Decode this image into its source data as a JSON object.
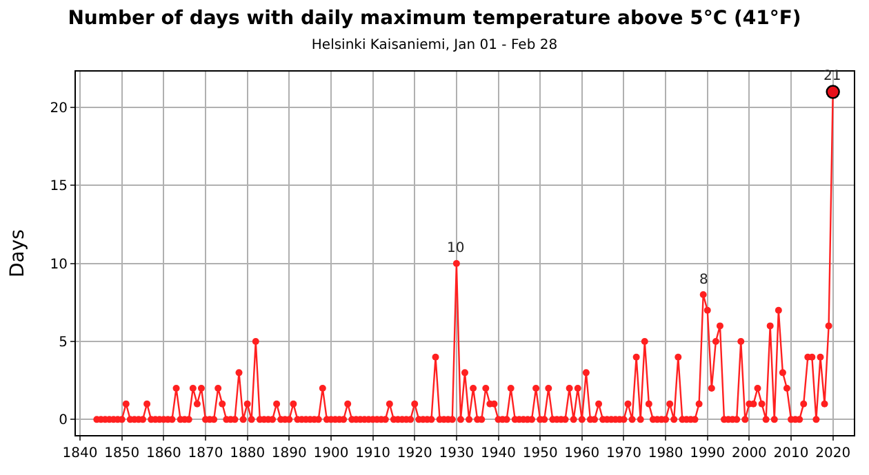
{
  "chart_data": {
    "type": "line",
    "title": "Number of days with daily maximum temperature above 5°C (41°F)",
    "subtitle": "Helsinki Kaisaniemi, Jan 01 - Feb 28",
    "ylabel": "Days",
    "x": [
      1844,
      1845,
      1846,
      1847,
      1848,
      1849,
      1850,
      1851,
      1852,
      1853,
      1854,
      1855,
      1856,
      1857,
      1858,
      1859,
      1860,
      1861,
      1862,
      1863,
      1864,
      1865,
      1866,
      1867,
      1868,
      1869,
      1870,
      1871,
      1872,
      1873,
      1874,
      1875,
      1876,
      1877,
      1878,
      1879,
      1880,
      1881,
      1882,
      1883,
      1884,
      1885,
      1886,
      1887,
      1888,
      1889,
      1890,
      1891,
      1892,
      1893,
      1894,
      1895,
      1896,
      1897,
      1898,
      1899,
      1900,
      1901,
      1902,
      1903,
      1904,
      1905,
      1906,
      1907,
      1908,
      1909,
      1910,
      1911,
      1912,
      1913,
      1914,
      1915,
      1916,
      1917,
      1918,
      1919,
      1920,
      1921,
      1922,
      1923,
      1924,
      1925,
      1926,
      1927,
      1928,
      1929,
      1930,
      1931,
      1932,
      1933,
      1934,
      1935,
      1936,
      1937,
      1938,
      1939,
      1940,
      1941,
      1942,
      1943,
      1944,
      1945,
      1946,
      1947,
      1948,
      1949,
      1950,
      1951,
      1952,
      1953,
      1954,
      1955,
      1956,
      1957,
      1958,
      1959,
      1960,
      1961,
      1962,
      1963,
      1964,
      1965,
      1966,
      1967,
      1968,
      1969,
      1970,
      1971,
      1972,
      1973,
      1974,
      1975,
      1976,
      1977,
      1978,
      1979,
      1980,
      1981,
      1982,
      1983,
      1984,
      1985,
      1986,
      1987,
      1988,
      1989,
      1990,
      1991,
      1992,
      1993,
      1994,
      1995,
      1996,
      1997,
      1998,
      1999,
      2000,
      2001,
      2002,
      2003,
      2004,
      2005,
      2006,
      2007,
      2008,
      2009,
      2010,
      2011,
      2012,
      2013,
      2014,
      2015,
      2016,
      2017,
      2018,
      2019,
      2020
    ],
    "series": [
      {
        "color": "#ff2020",
        "values": [
          0,
          0,
          0,
          0,
          0,
          0,
          0,
          1,
          0,
          0,
          0,
          0,
          1,
          0,
          0,
          0,
          0,
          0,
          0,
          2,
          0,
          0,
          0,
          2,
          1,
          2,
          0,
          0,
          0,
          2,
          1,
          0,
          0,
          0,
          3,
          0,
          1,
          0,
          5,
          0,
          0,
          0,
          0,
          1,
          0,
          0,
          0,
          1,
          0,
          0,
          0,
          0,
          0,
          0,
          2,
          0,
          0,
          0,
          0,
          0,
          1,
          0,
          0,
          0,
          0,
          0,
          0,
          0,
          0,
          0,
          1,
          0,
          0,
          0,
          0,
          0,
          1,
          0,
          0,
          0,
          0,
          4,
          0,
          0,
          0,
          0,
          10,
          0,
          3,
          0,
          2,
          0,
          0,
          2,
          1,
          1,
          0,
          0,
          0,
          2,
          0,
          0,
          0,
          0,
          0,
          2,
          0,
          0,
          2,
          0,
          0,
          0,
          0,
          2,
          0,
          2,
          0,
          3,
          0,
          0,
          1,
          0,
          0,
          0,
          0,
          0,
          0,
          1,
          0,
          4,
          0,
          5,
          1,
          0,
          0,
          0,
          0,
          1,
          0,
          4,
          0,
          0,
          0,
          0,
          1,
          8,
          7,
          2,
          5,
          6,
          0,
          0,
          0,
          0,
          5,
          0,
          1,
          1,
          2,
          1,
          0,
          6,
          0,
          7,
          3,
          2,
          0,
          0,
          0,
          1,
          4,
          4,
          0,
          4,
          1,
          6,
          21
        ]
      },
      {
        "type": "scatter",
        "x": [
          2020
        ],
        "color": "#e8101a",
        "values": [
          21
        ]
      }
    ],
    "annotations": [
      {
        "text": "10",
        "x": 1930,
        "y": 10
      },
      {
        "text": "8",
        "x": 1989,
        "y": 8
      },
      {
        "text": "21",
        "x": 2020,
        "y": 21
      }
    ],
    "xlim": [
      1839,
      2025
    ],
    "xticks": [
      1840,
      1850,
      1860,
      1870,
      1880,
      1890,
      1900,
      1910,
      1920,
      1930,
      1940,
      1950,
      1960,
      1970,
      1980,
      1990,
      2000,
      2010,
      2020
    ],
    "ylim": [
      -1,
      22.3
    ],
    "yticks": [
      0,
      5,
      10,
      15,
      20
    ],
    "grid": true,
    "marker": "circle",
    "line_style": "solid"
  }
}
